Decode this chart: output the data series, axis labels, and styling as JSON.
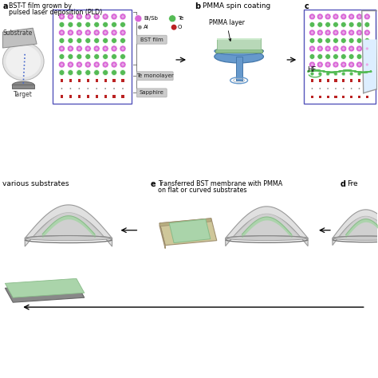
{
  "bg_color": "#ffffff",
  "color_bi_sb": "#d966d6",
  "color_te": "#55bb55",
  "color_al": "#aaaaaa",
  "color_o": "#bb2222",
  "color_bst_border": "#5555bb",
  "color_pmma_green": "#aad4aa",
  "color_pmma_dark": "#88bb88",
  "color_beaker_fill": "#ddeeff",
  "color_substrate_tan": "#cfc79a",
  "color_dome_gray": "#b0b0b0",
  "color_dome_light": "#e8e8e8",
  "color_dome_dark": "#888888",
  "color_flat_gray": "#888888",
  "color_flat_green": "#bbddbb",
  "label_a_text": "BST-T film grown by\npulsed laser deposition (PLD)",
  "label_b_text": "PMMA spin coating",
  "label_b": "b",
  "label_c": "c",
  "label_d": "d",
  "label_e": "e",
  "label_e_text": "Transferred BST membrane with PMMA\non flat or curved substrates",
  "label_f_text": "various substrates",
  "label_d_text": "Fre",
  "label_substrate": "Substrate",
  "label_target": "Target",
  "label_pmma_layer": "PMMA layer",
  "label_hf": "HF",
  "label_bst_film": "BST film",
  "label_te_monolayer": "Te monolayer",
  "label_sapphire": "Sapphire",
  "legend_bi_sb": "Bi/Sb",
  "legend_te": "Te",
  "legend_al": "Al",
  "legend_o": "O"
}
